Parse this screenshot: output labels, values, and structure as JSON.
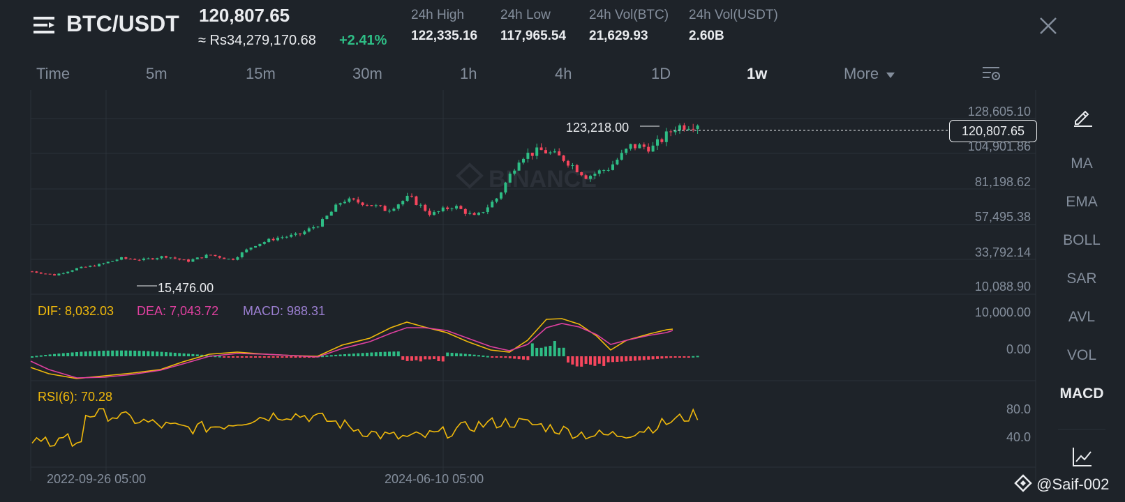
{
  "header": {
    "menu_icon": "menu-icon",
    "pair": "BTC/USDT",
    "last_price": "120,807.65",
    "local_price": "≈ Rs34,279,170.68",
    "change_pct": "+2.41%",
    "stats": [
      {
        "label": "24h High",
        "value": "122,335.16"
      },
      {
        "label": "24h Low",
        "value": "117,965.54"
      },
      {
        "label": "24h Vol(BTC)",
        "value": "21,629.93"
      },
      {
        "label": "24h Vol(USDT)",
        "value": "2.60B"
      }
    ],
    "close_icon": "close-icon"
  },
  "timeframes": {
    "items": [
      "Time",
      "5m",
      "15m",
      "30m",
      "1h",
      "4h",
      "1D",
      "1w",
      "More"
    ],
    "active": "1w",
    "settings_icon": "chart-settings-icon"
  },
  "right_toolbar": {
    "draw_icon": "pencil-icon",
    "items": [
      "MA",
      "EMA",
      "BOLL",
      "SAR",
      "AVL",
      "VOL",
      "MACD"
    ],
    "active": "MACD",
    "bottom_icon": "line-chart-icon"
  },
  "price_axis": [
    "128,605.10",
    "104,901.86",
    "81,198.62",
    "57,495.38",
    "33,792.14",
    "10,088.90"
  ],
  "macd_axis": [
    "10,000.00",
    "0.00"
  ],
  "rsi_axis": [
    "80.0",
    "40.0"
  ],
  "time_axis": [
    "2022-09-26 05:00",
    "2024-06-10 05:00"
  ],
  "annotations": {
    "current_price": "120,807.65",
    "high_marker": "123,218.00",
    "low_marker": "15,476.00",
    "watermark": "BINANCE"
  },
  "macd": {
    "dif_label": "DIF: 8,032.03",
    "dea_label": "DEA: 7,043.72",
    "macd_label": "MACD: 988.31"
  },
  "rsi": {
    "label": "RSI(6): 70.28"
  },
  "footer": {
    "watermark": "@Saif-002"
  },
  "colors": {
    "background": "#1e2329",
    "up": "#2ebd85",
    "down": "#f6465d",
    "dif": "#f0b90b",
    "dea": "#e040a0",
    "macd": "#9b7fd1",
    "rsi": "#f0b90b",
    "text_muted": "#848e9c"
  },
  "chart_data": {
    "type": "candlestick",
    "interval": "1w",
    "x_range": [
      "2022-09-26 05:00",
      "2024-06-10 05:00"
    ],
    "ylim": [
      10088.9,
      128605.1
    ],
    "approx_close_path": [
      19000,
      16500,
      21000,
      23500,
      28000,
      27000,
      29500,
      26000,
      30500,
      27000,
      37000,
      42000,
      44000,
      52000,
      68000,
      66000,
      61000,
      70000,
      58000,
      64000,
      56000,
      70000,
      98000,
      102000,
      96000,
      84000,
      90000,
      105000,
      104000,
      118000,
      120807.65
    ],
    "high": 123218.0,
    "low": 15476.0,
    "last": 120807.65
  }
}
